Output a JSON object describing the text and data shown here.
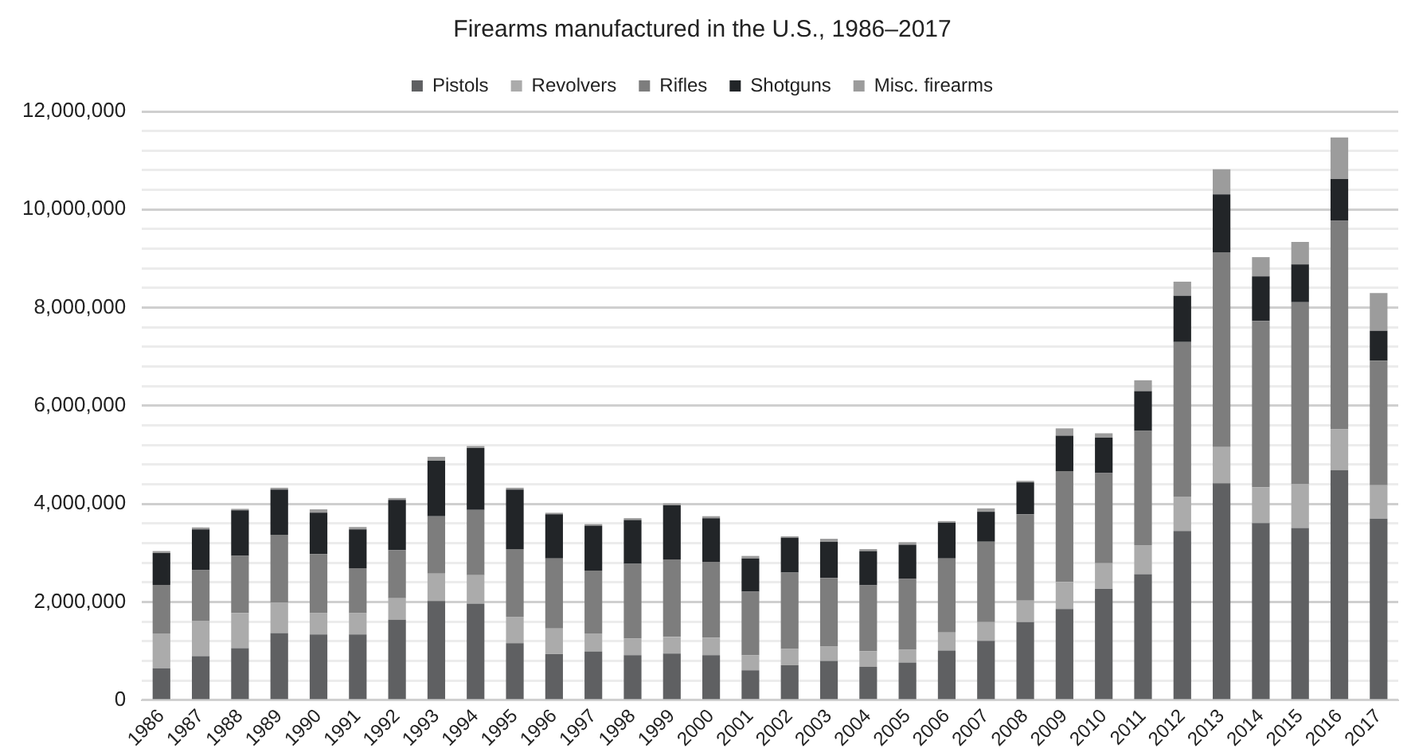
{
  "chart_data": {
    "type": "bar",
    "title": "Firearms manufactured in the U.S., 1986–2017",
    "stacked": true,
    "legend": "top",
    "grid": "y",
    "categories": [
      "1986",
      "1987",
      "1988",
      "1989",
      "1990",
      "1991",
      "1992",
      "1993",
      "1994",
      "1995",
      "1996",
      "1997",
      "1998",
      "1999",
      "2000",
      "2001",
      "2002",
      "2003",
      "2004",
      "2005",
      "2006",
      "2007",
      "2008",
      "2009",
      "2010",
      "2011",
      "2012",
      "2013",
      "2014",
      "2015",
      "2016",
      "2017"
    ],
    "ylim": [
      0,
      12000000
    ],
    "yticks": [
      {
        "value": 0,
        "label": "0"
      },
      {
        "value": 400000,
        "label": null
      },
      {
        "value": 800000,
        "label": null
      },
      {
        "value": 1200000,
        "label": null
      },
      {
        "value": 1600000,
        "label": null
      },
      {
        "value": 2000000,
        "label": "2,000,000"
      },
      {
        "value": 2400000,
        "label": null
      },
      {
        "value": 2800000,
        "label": null
      },
      {
        "value": 3200000,
        "label": null
      },
      {
        "value": 3600000,
        "label": null
      },
      {
        "value": 4000000,
        "label": "4,000,000"
      },
      {
        "value": 4400000,
        "label": null
      },
      {
        "value": 4800000,
        "label": null
      },
      {
        "value": 5200000,
        "label": null
      },
      {
        "value": 5600000,
        "label": null
      },
      {
        "value": 6000000,
        "label": "6,000,000"
      },
      {
        "value": 6400000,
        "label": null
      },
      {
        "value": 6800000,
        "label": null
      },
      {
        "value": 7200000,
        "label": null
      },
      {
        "value": 7600000,
        "label": null
      },
      {
        "value": 8000000,
        "label": "8,000,000"
      },
      {
        "value": 8400000,
        "label": null
      },
      {
        "value": 8800000,
        "label": null
      },
      {
        "value": 9200000,
        "label": null
      },
      {
        "value": 9600000,
        "label": null
      },
      {
        "value": 10000000,
        "label": "10,000,000"
      },
      {
        "value": 10400000,
        "label": null
      },
      {
        "value": 10800000,
        "label": null
      },
      {
        "value": 11200000,
        "label": null
      },
      {
        "value": 11600000,
        "label": null
      },
      {
        "value": 12000000,
        "label": "12,000,000"
      }
    ],
    "series": [
      {
        "name": "Pistols",
        "color": "#5f6062",
        "values": [
          650000,
          900000,
          1060000,
          1370000,
          1340000,
          1340000,
          1640000,
          2020000,
          1970000,
          1160000,
          940000,
          990000,
          920000,
          950000,
          920000,
          610000,
          710000,
          800000,
          680000,
          770000,
          1010000,
          1210000,
          1590000,
          1860000,
          2270000,
          2570000,
          3450000,
          4420000,
          3610000,
          3510000,
          4690000,
          3700000
        ]
      },
      {
        "name": "Revolvers",
        "color": "#ababab",
        "values": [
          710000,
          720000,
          720000,
          620000,
          440000,
          440000,
          440000,
          560000,
          580000,
          540000,
          520000,
          370000,
          340000,
          340000,
          350000,
          310000,
          340000,
          300000,
          320000,
          260000,
          370000,
          380000,
          440000,
          550000,
          520000,
          590000,
          700000,
          740000,
          730000,
          900000,
          830000,
          680000
        ]
      },
      {
        "name": "Rifles",
        "color": "#7d7d7d",
        "values": [
          990000,
          1030000,
          1160000,
          1380000,
          1200000,
          910000,
          980000,
          1170000,
          1330000,
          1380000,
          1430000,
          1280000,
          1520000,
          1580000,
          1550000,
          1290000,
          1550000,
          1390000,
          1340000,
          1440000,
          1510000,
          1640000,
          1760000,
          2260000,
          1840000,
          2330000,
          3150000,
          3970000,
          3390000,
          3700000,
          4250000,
          2540000
        ]
      },
      {
        "name": "Shotguns",
        "color": "#222528",
        "values": [
          650000,
          830000,
          930000,
          920000,
          840000,
          790000,
          1020000,
          1130000,
          1260000,
          1210000,
          900000,
          920000,
          890000,
          1100000,
          890000,
          680000,
          710000,
          740000,
          700000,
          700000,
          730000,
          610000,
          650000,
          720000,
          720000,
          810000,
          940000,
          1180000,
          910000,
          770000,
          850000,
          610000
        ]
      },
      {
        "name": "Misc. firearms",
        "color": "#9c9c9c",
        "values": [
          40000,
          40000,
          30000,
          40000,
          70000,
          50000,
          40000,
          80000,
          40000,
          40000,
          30000,
          30000,
          40000,
          40000,
          40000,
          50000,
          30000,
          60000,
          40000,
          50000,
          30000,
          70000,
          30000,
          150000,
          90000,
          220000,
          290000,
          510000,
          390000,
          460000,
          850000,
          770000
        ]
      }
    ]
  }
}
